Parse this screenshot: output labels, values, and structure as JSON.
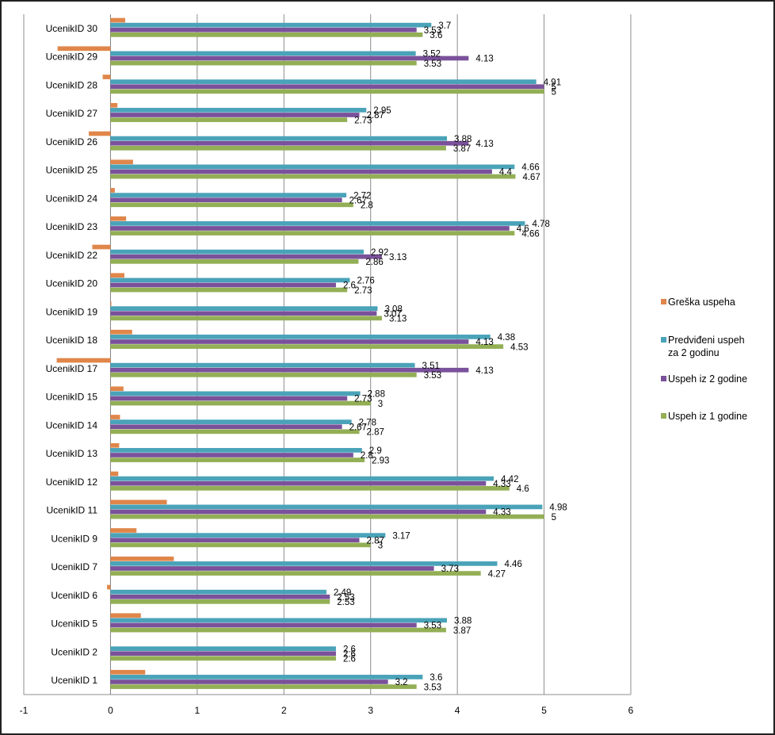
{
  "chart_data": {
    "type": "bar",
    "orientation": "horizontal",
    "grid": true,
    "legend_position": "right",
    "xlim": [
      -1,
      6
    ],
    "xticks": [
      "-1",
      "0",
      "1",
      "2",
      "3",
      "4",
      "5",
      "6"
    ],
    "categories": [
      "UcenikID 30",
      "UcenikID 29",
      "UcenikID 28",
      "UcenikID 27",
      "UcenikID 26",
      "UcenikID 25",
      "UcenikID 24",
      "UcenikID 23",
      "UcenikID 22",
      "UcenikID 20",
      "UcenikID 19",
      "UcenikID 18",
      "UcenikID 17",
      "UcenikID 15",
      "UcenikID 14",
      "UcenikID 13",
      "UcenikID 12",
      "UcenikID 11",
      "UcenikID 9",
      "UcenikID 7",
      "UcenikID 6",
      "UcenikID 5",
      "UcenikID 2",
      "UcenikID 1"
    ],
    "series": [
      {
        "name": "Greška uspeha",
        "color": "#e0864a",
        "show_labels": false,
        "values": [
          0.17,
          -0.61,
          -0.09,
          0.08,
          -0.25,
          0.26,
          0.05,
          0.18,
          -0.21,
          0.16,
          0.01,
          0.25,
          -0.62,
          0.15,
          0.11,
          0.1,
          0.09,
          0.65,
          0.3,
          0.73,
          -0.04,
          0.35,
          0.0,
          0.4
        ]
      },
      {
        "name": "Predviđeni uspeh za 2 godinu",
        "color": "#4aa3b8",
        "show_labels": true,
        "values": [
          3.7,
          3.52,
          4.91,
          2.95,
          3.88,
          4.66,
          2.72,
          4.78,
          2.92,
          2.76,
          3.08,
          4.38,
          3.51,
          2.88,
          2.78,
          2.9,
          4.42,
          4.98,
          3.17,
          4.46,
          2.49,
          3.88,
          2.6,
          3.6
        ]
      },
      {
        "name": "Uspeh iz 2 godine",
        "color": "#7a519a",
        "show_labels": true,
        "values": [
          3.53,
          4.13,
          5,
          2.87,
          4.13,
          4.4,
          2.67,
          4.6,
          3.13,
          2.6,
          3.07,
          4.13,
          4.13,
          2.73,
          2.67,
          2.8,
          4.33,
          4.33,
          2.87,
          3.73,
          2.53,
          3.53,
          2.6,
          3.2
        ]
      },
      {
        "name": "Uspeh iz 1 godine",
        "color": "#93af55",
        "show_labels": true,
        "values": [
          3.6,
          3.53,
          5,
          2.73,
          3.87,
          4.67,
          2.8,
          4.66,
          2.86,
          2.73,
          3.13,
          4.53,
          3.53,
          3,
          2.87,
          2.93,
          4.6,
          5,
          3,
          4.27,
          2.53,
          3.87,
          2.6,
          3.53
        ]
      }
    ],
    "legend": [
      {
        "name_lines": [
          "Greška uspeha"
        ],
        "color": "#e0864a"
      },
      {
        "name_lines": [
          "Predviđeni uspeh",
          "za 2 godinu"
        ],
        "color": "#4aa3b8"
      },
      {
        "name_lines": [
          "Uspeh iz 2 godine"
        ],
        "color": "#7a519a"
      },
      {
        "name_lines": [
          "Uspeh iz 1 godine"
        ],
        "color": "#93af55"
      }
    ]
  }
}
